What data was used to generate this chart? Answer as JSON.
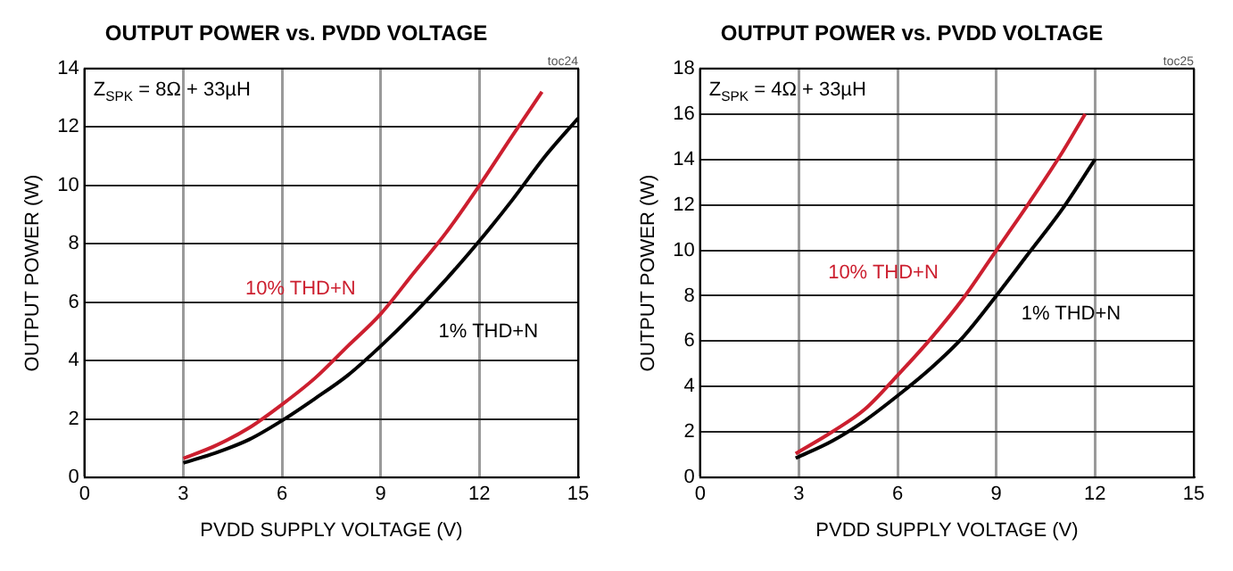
{
  "chart_data": [
    {
      "type": "line",
      "title": "OUTPUT POWER vs. PVDD VOLTAGE",
      "xlabel": "PVDD SUPPLY VOLTAGE (V)",
      "ylabel": "OUTPUT POWER (W)",
      "xlim": [
        0,
        15
      ],
      "xticks": [
        0,
        3,
        6,
        9,
        12,
        15
      ],
      "ylim": [
        0,
        14
      ],
      "yticks": [
        0,
        2,
        4,
        6,
        8,
        10,
        12,
        14
      ],
      "grid": true,
      "legend": false,
      "marker": "none",
      "annotations": [
        "Z$_{SPK}$ = 8Ω + 33µH",
        "toc24"
      ],
      "series": [
        {
          "name": "10% THD+N",
          "color": "#cc1f2f",
          "x": [
            3,
            4,
            5,
            6,
            7,
            8,
            9,
            10,
            11,
            12,
            13,
            13.9
          ],
          "values": [
            0.65,
            1.1,
            1.7,
            2.5,
            3.4,
            4.5,
            5.6,
            7.0,
            8.4,
            10,
            11.7,
            13.2
          ]
        },
        {
          "name": "1% THD+N",
          "color": "#000000",
          "x": [
            3,
            4,
            5,
            6,
            7,
            8,
            9,
            10,
            11,
            12,
            13,
            14,
            15
          ],
          "values": [
            0.5,
            0.85,
            1.3,
            1.95,
            2.7,
            3.5,
            4.5,
            5.6,
            6.8,
            8.1,
            9.5,
            11,
            12.3
          ]
        }
      ]
    },
    {
      "type": "line",
      "title": "OUTPUT POWER vs. PVDD VOLTAGE",
      "xlabel": "PVDD SUPPLY VOLTAGE (V)",
      "ylabel": "OUTPUT POWER (W)",
      "xlim": [
        0,
        15
      ],
      "xticks": [
        0,
        3,
        6,
        9,
        12,
        15
      ],
      "ylim": [
        0,
        18
      ],
      "yticks": [
        0,
        2,
        4,
        6,
        8,
        10,
        12,
        14,
        16,
        18
      ],
      "grid": true,
      "legend": false,
      "marker": "none",
      "annotations": [
        "Z$_{SPK}$ = 4Ω + 33µH",
        "toc25"
      ],
      "series": [
        {
          "name": "10% THD+N",
          "color": "#cc1f2f",
          "x": [
            2.9,
            4,
            5,
            6,
            7,
            8,
            9,
            10,
            11,
            11.7
          ],
          "values": [
            1.05,
            2.0,
            3.0,
            4.5,
            6.1,
            7.9,
            10,
            12.1,
            14.3,
            16
          ]
        },
        {
          "name": "1% THD+N",
          "color": "#000000",
          "x": [
            2.9,
            4,
            5,
            6,
            7,
            8,
            9,
            10,
            11,
            12
          ],
          "values": [
            0.85,
            1.6,
            2.5,
            3.6,
            4.8,
            6.2,
            8.0,
            9.9,
            11.8,
            14
          ]
        }
      ]
    }
  ]
}
